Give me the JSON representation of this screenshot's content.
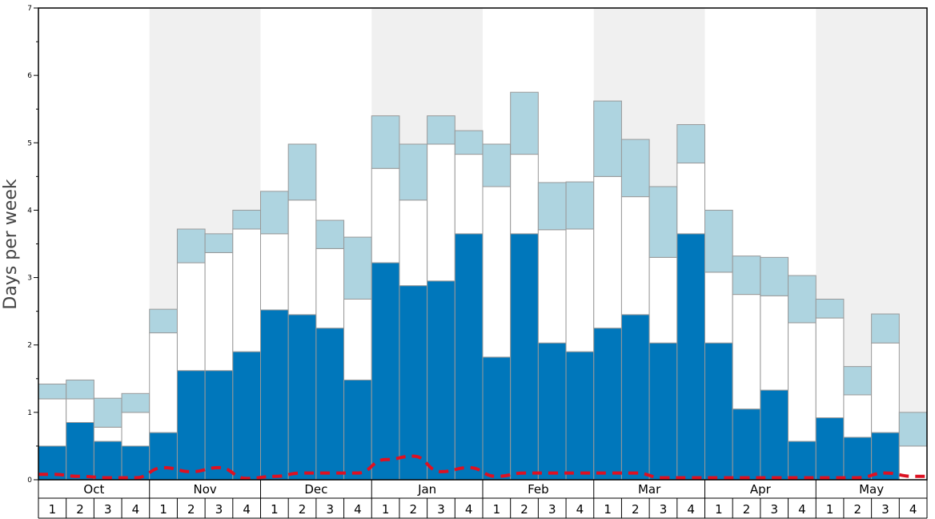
{
  "chart_data": {
    "type": "bar",
    "stacked": true,
    "title": "",
    "xlabel": "",
    "ylabel": "Days per week",
    "ylim": [
      0,
      7
    ],
    "yticks": [
      "0",
      "1",
      "2",
      "3",
      "4",
      "5",
      "6",
      "7"
    ],
    "months": [
      "Oct",
      "Nov",
      "Dec",
      "Jan",
      "Feb",
      "Mar",
      "Apr",
      "May"
    ],
    "week_labels": [
      "1",
      "2",
      "3",
      "4"
    ],
    "layers": [
      {
        "color": "#0077bb",
        "values": [
          0.5,
          0.85,
          0.57,
          0.5,
          0.7,
          1.62,
          1.62,
          1.9,
          2.52,
          2.45,
          2.25,
          1.48,
          3.22,
          2.88,
          2.95,
          3.65,
          1.82,
          3.65,
          2.03,
          1.9,
          2.25,
          2.45,
          2.03,
          3.65,
          2.03,
          1.05,
          1.33,
          0.57,
          0.92,
          0.63,
          0.7,
          0.0
        ]
      },
      {
        "color": "#ffffff",
        "values": [
          0.7,
          0.35,
          0.21,
          0.5,
          1.48,
          1.6,
          1.75,
          1.82,
          1.13,
          1.7,
          1.18,
          1.2,
          1.4,
          1.27,
          2.03,
          1.18,
          2.53,
          1.18,
          1.68,
          1.82,
          2.25,
          1.75,
          1.27,
          1.05,
          1.05,
          1.7,
          1.4,
          1.76,
          1.48,
          0.63,
          1.33,
          0.5
        ]
      },
      {
        "color": "#aed4e0",
        "values": [
          0.22,
          0.28,
          0.43,
          0.28,
          0.35,
          0.5,
          0.28,
          0.28,
          0.63,
          0.83,
          0.42,
          0.92,
          0.78,
          0.83,
          0.42,
          0.35,
          0.63,
          0.92,
          0.7,
          0.7,
          1.12,
          0.85,
          1.05,
          0.57,
          0.92,
          0.57,
          0.57,
          0.7,
          0.28,
          0.42,
          0.43,
          0.5
        ]
      }
    ],
    "average_line": {
      "color": "#dd1122",
      "values": [
        0.08,
        0.05,
        0.03,
        0.03,
        0.18,
        0.12,
        0.18,
        0.02,
        0.05,
        0.1,
        0.1,
        0.1,
        0.3,
        0.35,
        0.12,
        0.18,
        0.05,
        0.1,
        0.1,
        0.1,
        0.1,
        0.1,
        0.03,
        0.03,
        0.03,
        0.03,
        0.03,
        0.03,
        0.03,
        0.03,
        0.1,
        0.05
      ]
    },
    "band_color": "#f0f0f0",
    "grid": false,
    "legend": "none"
  }
}
